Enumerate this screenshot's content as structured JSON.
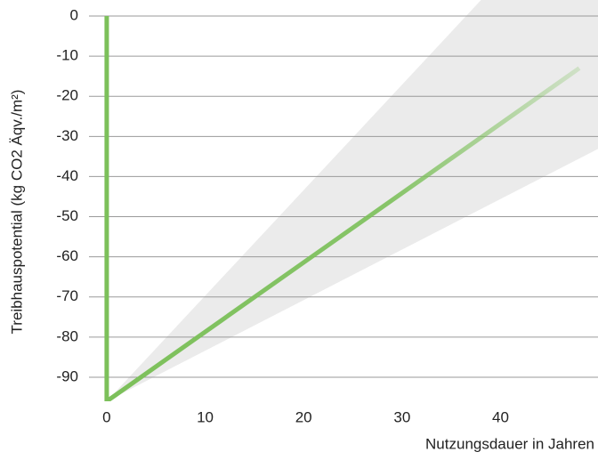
{
  "chart_data": {
    "type": "line",
    "x_label": "Nutzungsdauer in Jahren",
    "y_label": "Treibhauspotential (kg CO2 Äqv./m²)",
    "xlim": [
      -1.8,
      49.9
    ],
    "ylim": [
      -96,
      0
    ],
    "xticks": [
      0,
      10,
      20,
      30,
      40
    ],
    "yticks": [
      0,
      -10,
      -20,
      -30,
      -40,
      -50,
      -60,
      -70,
      -80,
      -90
    ],
    "grid": true,
    "series": [
      {
        "color": "#7cc05a",
        "x": [
          0,
          0,
          48
        ],
        "values": [
          0,
          -96,
          -13
        ]
      }
    ],
    "band": {
      "color": "#ebebeb",
      "x": [
        0,
        50
      ],
      "lower": [
        -96,
        -33
      ],
      "upper": [
        -96,
        35.5
      ]
    }
  }
}
